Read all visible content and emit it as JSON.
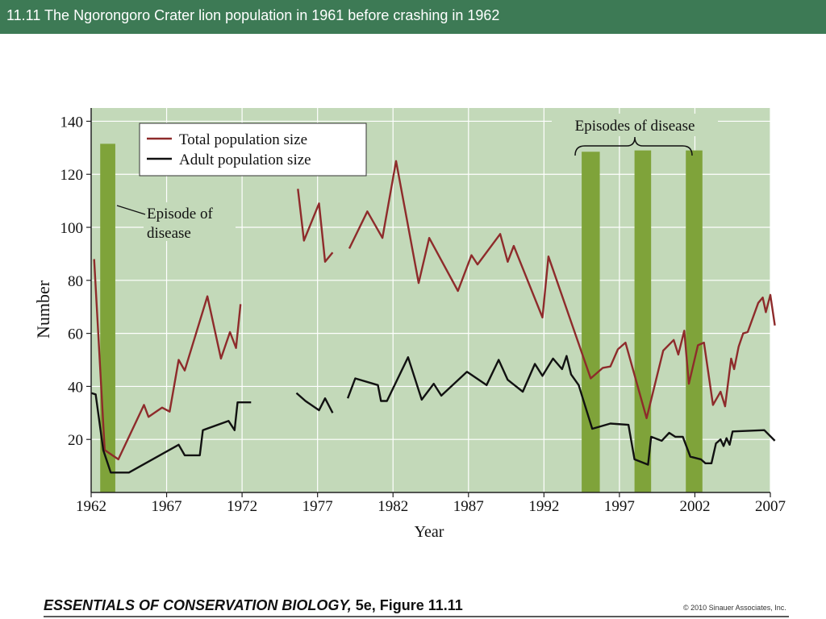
{
  "slide": {
    "title": "11.11  The Ngorongoro Crater lion population in 1961 before crashing in 1962",
    "footer_book": "ESSENTIALS OF CONSERVATION BIOLOGY,",
    "footer_edition": "5e, Figure 11.11",
    "footer_copyright": "© 2010 Sinauer Associates, Inc."
  },
  "colors": {
    "header": "#3d7a55",
    "plot_bg": "#c3d9b9",
    "disease_bar": "#7fa33a",
    "total": "#8e2b2b",
    "adult": "#111111"
  },
  "chart_data": {
    "type": "line",
    "title": "",
    "xlabel": "Year",
    "ylabel": "Number",
    "xlim": [
      1962,
      2007
    ],
    "ylim": [
      0,
      145
    ],
    "xticks": [
      1962,
      1967,
      1972,
      1977,
      1982,
      1987,
      1992,
      1997,
      2002,
      2007
    ],
    "yticks": [
      20,
      40,
      60,
      80,
      100,
      120,
      140
    ],
    "grid": true,
    "legend_position": "top-left",
    "series": [
      {
        "name": "Total population size",
        "color": "#8e2b2b",
        "segments": [
          [
            [
              1962.2,
              88
            ],
            [
              1962.9,
              16
            ],
            [
              1963.8,
              12.5
            ],
            [
              1965.5,
              33
            ],
            [
              1965.8,
              28.5
            ],
            [
              1966.7,
              32
            ],
            [
              1967.2,
              30.5
            ],
            [
              1967.8,
              50
            ],
            [
              1968.2,
              46
            ],
            [
              1969.7,
              74
            ],
            [
              1970.6,
              50.5
            ],
            [
              1971.2,
              60.5
            ],
            [
              1971.6,
              54.5
            ],
            [
              1971.9,
              71
            ]
          ],
          [
            [
              1975.7,
              114.5
            ],
            [
              1976.1,
              95
            ],
            [
              1977.1,
              109
            ],
            [
              1977.5,
              87
            ],
            [
              1978.0,
              90.5
            ]
          ],
          [
            [
              1979.1,
              92
            ],
            [
              1980.3,
              106
            ],
            [
              1981.3,
              96
            ],
            [
              1982.2,
              125
            ],
            [
              1983.7,
              79
            ],
            [
              1984.4,
              96
            ],
            [
              1986.3,
              76
            ],
            [
              1987.2,
              89.5
            ],
            [
              1987.6,
              86
            ],
            [
              1989.1,
              97.5
            ],
            [
              1989.6,
              87
            ],
            [
              1990.0,
              93
            ],
            [
              1991.9,
              66
            ],
            [
              1992.3,
              89
            ],
            [
              1995.1,
              43
            ],
            [
              1995.9,
              47
            ],
            [
              1996.4,
              47.5
            ],
            [
              1996.9,
              54
            ],
            [
              1997.4,
              56.5
            ],
            [
              1998.8,
              28
            ],
            [
              1999.9,
              53.5
            ],
            [
              2000.6,
              57.5
            ],
            [
              2000.9,
              52
            ],
            [
              2001.3,
              61
            ],
            [
              2001.6,
              41
            ],
            [
              2002.2,
              55.5
            ],
            [
              2002.6,
              56.5
            ],
            [
              2003.2,
              33
            ],
            [
              2003.7,
              38
            ],
            [
              2004.0,
              32.5
            ],
            [
              2004.4,
              50.5
            ],
            [
              2004.6,
              46.5
            ],
            [
              2004.9,
              55
            ],
            [
              2005.2,
              60
            ],
            [
              2005.5,
              60.5
            ],
            [
              2006.2,
              71.5
            ],
            [
              2006.5,
              73.5
            ],
            [
              2006.7,
              68
            ],
            [
              2007.0,
              74.5
            ],
            [
              2007.3,
              63
            ]
          ]
        ]
      },
      {
        "name": "Adult population size",
        "color": "#111111",
        "segments": [
          [
            [
              1962.0,
              37.5
            ],
            [
              1962.3,
              37
            ],
            [
              1962.8,
              16
            ],
            [
              1963.3,
              7.5
            ],
            [
              1964.5,
              7.5
            ],
            [
              1967.8,
              18
            ],
            [
              1968.2,
              14
            ],
            [
              1969.2,
              14
            ],
            [
              1969.4,
              23.5
            ],
            [
              1971.1,
              27
            ],
            [
              1971.5,
              23.5
            ],
            [
              1971.7,
              34
            ],
            [
              1972.6,
              34
            ]
          ],
          [
            [
              1975.6,
              37.5
            ],
            [
              1976.2,
              34.5
            ],
            [
              1977.1,
              31
            ],
            [
              1977.5,
              35.5
            ],
            [
              1978.0,
              30
            ]
          ],
          [
            [
              1979.0,
              35.5
            ],
            [
              1979.5,
              43
            ],
            [
              1981.0,
              40.5
            ],
            [
              1981.2,
              34.5
            ],
            [
              1981.6,
              34.5
            ],
            [
              1983.0,
              51
            ],
            [
              1983.9,
              35
            ],
            [
              1984.7,
              41
            ],
            [
              1985.2,
              36.5
            ],
            [
              1986.9,
              45.5
            ],
            [
              1988.2,
              40.5
            ],
            [
              1989.0,
              50
            ],
            [
              1989.6,
              42.5
            ],
            [
              1990.6,
              38
            ],
            [
              1991.4,
              48.5
            ],
            [
              1991.9,
              44
            ],
            [
              1992.6,
              50.5
            ],
            [
              1993.2,
              46.5
            ],
            [
              1993.5,
              51.5
            ],
            [
              1993.8,
              44.5
            ],
            [
              1994.3,
              40.5
            ],
            [
              1995.2,
              24
            ],
            [
              1996.4,
              26
            ],
            [
              1997.6,
              25.5
            ],
            [
              1998.0,
              12.5
            ],
            [
              1998.9,
              10.5
            ],
            [
              1999.1,
              21
            ],
            [
              1999.8,
              19.5
            ],
            [
              2000.3,
              22.5
            ],
            [
              2000.7,
              21
            ],
            [
              2001.2,
              21
            ],
            [
              2001.7,
              13.5
            ],
            [
              2002.4,
              12.5
            ],
            [
              2002.7,
              11
            ],
            [
              2003.1,
              11
            ],
            [
              2003.4,
              18.5
            ],
            [
              2003.7,
              20
            ],
            [
              2003.9,
              17.5
            ],
            [
              2004.1,
              20.5
            ],
            [
              2004.3,
              18
            ],
            [
              2004.5,
              23
            ],
            [
              2006.6,
              23.5
            ],
            [
              2007.3,
              19.5
            ]
          ]
        ]
      }
    ],
    "disease_bars": [
      {
        "x0": 1962.6,
        "x1": 1963.6,
        "top": 131.5
      },
      {
        "x0": 1994.5,
        "x1": 1995.7,
        "top": 128.5
      },
      {
        "x0": 1998.0,
        "x1": 1999.1,
        "top": 129
      },
      {
        "x0": 2001.4,
        "x1": 2002.5,
        "top": 129
      }
    ],
    "annotations": {
      "episode_single_line1": "Episode of",
      "episode_single_line2": "disease",
      "episodes_multi": "Episodes of disease"
    }
  }
}
